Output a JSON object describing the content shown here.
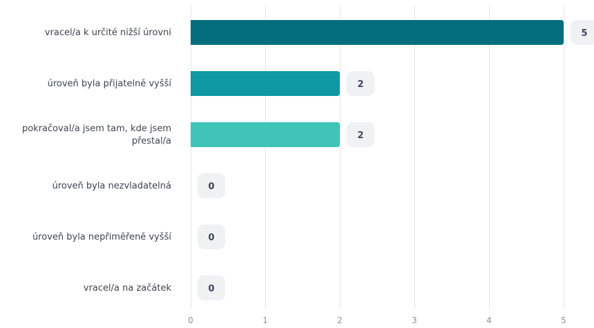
{
  "chart_data": {
    "type": "bar",
    "orientation": "horizontal",
    "categories": [
      "vracel/a k určité nižší úrovni",
      "úroveň byla přijatelně vyšší",
      "pokračoval/a jsem tam, kde jsem přestal/a",
      "úroveň byla nezvladatelná",
      "úroveň byla nepřiměřeně vyšší",
      "vracel/a na začátek"
    ],
    "values": [
      5,
      2,
      2,
      0,
      0,
      0
    ],
    "bar_colors": [
      "#046e7c",
      "#0f9aa3",
      "#40c4b8",
      "#40c4b8",
      "#40c4b8",
      "#40c4b8"
    ],
    "xlim": [
      0,
      5
    ],
    "xticks": [
      "0",
      "1",
      "2",
      "3",
      "4",
      "5"
    ],
    "grid": true,
    "legend": "none"
  }
}
